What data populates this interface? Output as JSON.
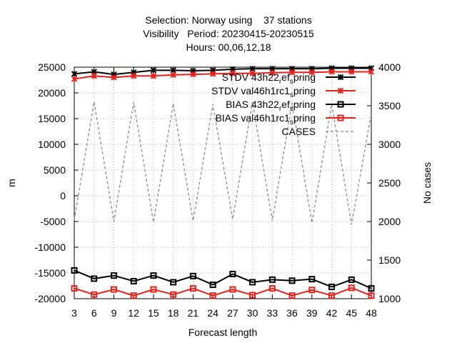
{
  "chart_data": {
    "type": "line",
    "title_lines": [
      "Selection: Norway using    37 stations",
      "Visibility   Period: 20230415-20230515",
      "Hours: 00,06,12,18"
    ],
    "xlabel": "Forecast length",
    "ylabel": "m",
    "y2label": "No cases",
    "categories": [
      "3",
      "6",
      "9",
      "12",
      "15",
      "18",
      "21",
      "24",
      "27",
      "30",
      "33",
      "36",
      "39",
      "42",
      "45",
      "48"
    ],
    "x": [
      3,
      6,
      9,
      12,
      15,
      18,
      21,
      24,
      27,
      30,
      33,
      36,
      39,
      42,
      45,
      48
    ],
    "xlim": [
      3,
      48
    ],
    "ylim": [
      -20000,
      25000
    ],
    "y2lim": [
      1000,
      4000
    ],
    "yticks": [
      -20000,
      -15000,
      -10000,
      -5000,
      0,
      5000,
      10000,
      15000,
      20000,
      25000
    ],
    "y2ticks": [
      1000,
      1500,
      2000,
      2500,
      3000,
      3500,
      4000
    ],
    "grid": true,
    "legend_position": "top-right",
    "series": [
      {
        "name": "STDV 43h22_ref_spring",
        "label_parts": [
          {
            "t": "STDV 43h22",
            "s": "n"
          },
          {
            "t": "r",
            "s": "sub"
          },
          {
            "t": "ef",
            "s": "n"
          },
          {
            "t": "s",
            "s": "sub"
          },
          {
            "t": "pring",
            "s": "n"
          }
        ],
        "color": "#000000",
        "marker": "x",
        "axis": "y1",
        "values": [
          23700,
          24100,
          23600,
          24000,
          24400,
          24400,
          24300,
          24400,
          24600,
          24700,
          24700,
          24700,
          24700,
          24800,
          24800,
          24800
        ]
      },
      {
        "name": "STDV val46h1rc1_spring",
        "label_parts": [
          {
            "t": "STDV val46h1rc1",
            "s": "n"
          },
          {
            "t": "s",
            "s": "sub"
          },
          {
            "t": "pring",
            "s": "n"
          }
        ],
        "color": "#e8201a",
        "marker": "x",
        "axis": "y1",
        "values": [
          22700,
          23300,
          23000,
          23300,
          23300,
          23500,
          23600,
          23700,
          23800,
          23800,
          23900,
          24000,
          24000,
          24100,
          24100,
          24100
        ]
      },
      {
        "name": "BIAS 43h22_ref_spring",
        "label_parts": [
          {
            "t": "BIAS 43h22",
            "s": "n"
          },
          {
            "t": "r",
            "s": "sub"
          },
          {
            "t": "ef",
            "s": "n"
          },
          {
            "t": "s",
            "s": "sub"
          },
          {
            "t": "pring",
            "s": "n"
          }
        ],
        "color": "#000000",
        "marker": "square",
        "axis": "y1",
        "values": [
          -14500,
          -16100,
          -15500,
          -16600,
          -15500,
          -16800,
          -15600,
          -17300,
          -15200,
          -16800,
          -16300,
          -16500,
          -16200,
          -17700,
          -16300,
          -18000
        ]
      },
      {
        "name": "BIAS val46h1rc1_spring",
        "label_parts": [
          {
            "t": "BIAS val46h1rc1",
            "s": "n"
          },
          {
            "t": "s",
            "s": "sub"
          },
          {
            "t": "pring",
            "s": "n"
          }
        ],
        "color": "#e8201a",
        "marker": "square",
        "axis": "y1",
        "values": [
          -18000,
          -19200,
          -18200,
          -19400,
          -18200,
          -19200,
          -18000,
          -19400,
          -18200,
          -19300,
          -18000,
          -19400,
          -18300,
          -19400,
          -17900,
          -19400
        ]
      },
      {
        "name": "CASES",
        "label_parts": [
          {
            "t": "CASES",
            "s": "n"
          }
        ],
        "color": "#999999",
        "marker": "none",
        "dashed": true,
        "axis": "y2",
        "values": [
          2020,
          3550,
          2000,
          3550,
          1990,
          3530,
          2010,
          3520,
          2030,
          3550,
          2010,
          3540,
          1980,
          3520,
          1960,
          3400
        ]
      }
    ]
  }
}
